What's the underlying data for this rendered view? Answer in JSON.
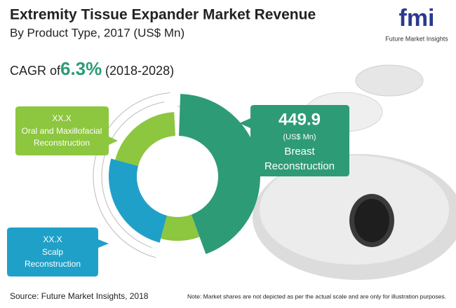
{
  "header": {
    "title": "Extremity Tissue Expander Market Revenue",
    "subtitle": "By Product Type, 2017 (US$ Mn)"
  },
  "logo": {
    "mark": "fmi",
    "name": "Future Market Insights"
  },
  "cagr": {
    "label": "CAGR of",
    "value": "6.3%",
    "period": "(2018-2028)"
  },
  "callouts": [
    {
      "value": "XX.X",
      "lines": [
        "Oral and Maxillofacial",
        "Reconstruction"
      ]
    },
    {
      "value": "XX.X",
      "lines": [
        "Scalp",
        "Reconstruction"
      ]
    },
    {
      "value": "449.9",
      "unit": "(US$ Mn)",
      "lines": [
        "Breast",
        "Reconstruction"
      ]
    }
  ],
  "footer": {
    "source": "Source: Future Market Insights, 2018",
    "note": "Note: Market shares are not depicted as per the actual scale and are only for illustration purposes."
  }
}
